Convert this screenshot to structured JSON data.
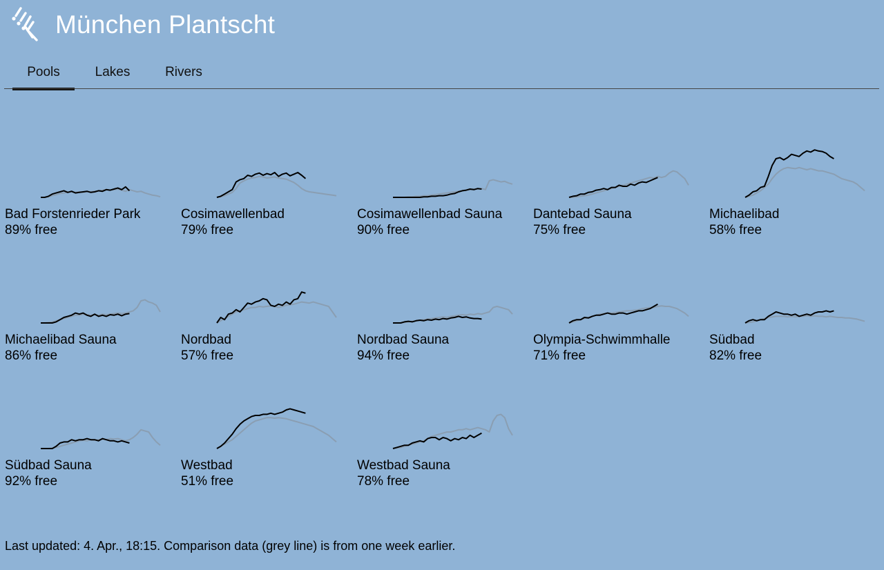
{
  "app": {
    "title": "München Plantscht",
    "logo_icon": "swimmer-logo-icon"
  },
  "tabs": [
    {
      "label": "Pools",
      "active": true
    },
    {
      "label": "Lakes",
      "active": false
    },
    {
      "label": "Rivers",
      "active": false
    }
  ],
  "colors": {
    "background": "#8fb3d6",
    "current_line": "#000000",
    "comparison_line": "#8a9eb2",
    "title": "#ffffff"
  },
  "chart_data": {
    "type": "line",
    "description_series": [
      "current",
      "previous week"
    ],
    "ylim": [
      0,
      100
    ],
    "charts": [
      {
        "name": "Bad Forstenrieder Park",
        "free": "89% free",
        "current": [
          0,
          0,
          2,
          6,
          8,
          10,
          12,
          9,
          11,
          8,
          9,
          10,
          11,
          9,
          10,
          12,
          11,
          14,
          13,
          15,
          17,
          14,
          19,
          12
        ],
        "previous": [
          0,
          0,
          1,
          3,
          5,
          7,
          8,
          9,
          10,
          9,
          10,
          9,
          11,
          10,
          11,
          12,
          13,
          14,
          13,
          14,
          15,
          13,
          11,
          14,
          12,
          10,
          11,
          8,
          6,
          4,
          3,
          1
        ]
      },
      {
        "name": "Cosimawellenbad",
        "free": "79% free",
        "current": [
          0,
          2,
          6,
          10,
          14,
          28,
          32,
          34,
          40,
          38,
          42,
          44,
          40,
          43,
          41,
          45,
          38,
          42,
          44,
          39,
          42,
          45,
          40,
          34
        ],
        "previous": [
          0,
          1,
          3,
          6,
          9,
          16,
          26,
          30,
          33,
          35,
          36,
          38,
          37,
          35,
          36,
          37,
          35,
          34,
          33,
          30,
          27,
          22,
          16,
          12,
          10,
          9,
          8,
          7,
          6,
          5,
          4,
          3
        ]
      },
      {
        "name": "Cosimawellenbad Sauna",
        "free": "90% free",
        "current": [
          0,
          0,
          0,
          0,
          0,
          0,
          0,
          0,
          1,
          1,
          2,
          2,
          3,
          3,
          4,
          6,
          7,
          10,
          12,
          13,
          15,
          14,
          16,
          15
        ],
        "previous": [
          0,
          0,
          0,
          0,
          1,
          1,
          2,
          2,
          3,
          3,
          4,
          5,
          6,
          7,
          8,
          9,
          10,
          11,
          12,
          13,
          14,
          15,
          15,
          16,
          14,
          30,
          32,
          30,
          28,
          29,
          26,
          24
        ]
      },
      {
        "name": "Dantebad Sauna",
        "free": "75% free",
        "current": [
          0,
          2,
          3,
          6,
          6,
          9,
          10,
          13,
          14,
          16,
          14,
          18,
          18,
          22,
          20,
          20,
          24,
          22,
          26,
          28,
          27,
          30,
          33,
          36
        ],
        "previous": [
          0,
          0,
          1,
          2,
          3,
          4,
          6,
          8,
          10,
          12,
          14,
          16,
          18,
          20,
          22,
          24,
          26,
          28,
          30,
          32,
          34,
          36,
          35,
          38,
          36,
          38,
          44,
          48,
          46,
          40,
          34,
          22
        ]
      },
      {
        "name": "Michaelibad",
        "free": "58% free",
        "current": [
          0,
          4,
          10,
          12,
          18,
          20,
          38,
          58,
          70,
          72,
          68,
          72,
          78,
          76,
          74,
          80,
          84,
          82,
          86,
          84,
          83,
          80,
          74,
          70
        ],
        "previous": [
          0,
          2,
          4,
          8,
          12,
          18,
          24,
          34,
          42,
          48,
          52,
          54,
          53,
          52,
          54,
          52,
          50,
          52,
          50,
          48,
          48,
          46,
          44,
          42,
          38,
          34,
          32,
          30,
          28,
          24,
          18,
          12
        ]
      },
      {
        "name": "Michaelibad Sauna",
        "free": "86% free",
        "current": [
          0,
          0,
          0,
          0,
          2,
          6,
          10,
          12,
          14,
          18,
          16,
          18,
          14,
          12,
          16,
          12,
          14,
          12,
          15,
          14,
          16,
          13,
          16,
          17
        ],
        "previous": [
          0,
          0,
          1,
          2,
          4,
          6,
          8,
          10,
          12,
          14,
          14,
          16,
          15,
          14,
          15,
          14,
          16,
          15,
          16,
          17,
          18,
          17,
          18,
          20,
          22,
          28,
          40,
          42,
          38,
          36,
          32,
          20
        ]
      },
      {
        "name": "Nordbad",
        "free": "57% free",
        "current": [
          0,
          10,
          6,
          16,
          18,
          24,
          20,
          28,
          36,
          34,
          38,
          40,
          44,
          42,
          32,
          30,
          34,
          32,
          38,
          34,
          42,
          44,
          56,
          54
        ],
        "previous": [
          0,
          4,
          8,
          12,
          16,
          20,
          22,
          24,
          26,
          28,
          28,
          30,
          29,
          30,
          31,
          30,
          28,
          30,
          32,
          33,
          34,
          36,
          38,
          37,
          36,
          38,
          36,
          34,
          32,
          30,
          20,
          10
        ]
      },
      {
        "name": "Nordbad Sauna",
        "free": "94% free",
        "current": [
          0,
          0,
          0,
          2,
          3,
          2,
          4,
          5,
          4,
          6,
          5,
          7,
          6,
          8,
          7,
          9,
          10,
          12,
          10,
          11,
          9,
          8,
          8,
          7
        ],
        "previous": [
          0,
          0,
          0,
          1,
          2,
          3,
          4,
          5,
          6,
          7,
          8,
          9,
          10,
          11,
          10,
          12,
          13,
          14,
          15,
          14,
          16,
          15,
          17,
          16,
          18,
          20,
          28,
          30,
          28,
          26,
          24,
          16
        ]
      },
      {
        "name": "Olympia-Schwimmhalle",
        "free": "71% free",
        "current": [
          0,
          4,
          6,
          6,
          10,
          9,
          12,
          14,
          14,
          16,
          18,
          16,
          16,
          18,
          18,
          16,
          18,
          20,
          22,
          22,
          24,
          26,
          30,
          34
        ],
        "previous": [
          0,
          2,
          4,
          6,
          8,
          10,
          12,
          14,
          16,
          17,
          18,
          18,
          19,
          20,
          21,
          22,
          22,
          23,
          24,
          26,
          27,
          28,
          28,
          30,
          31,
          30,
          30,
          28,
          26,
          22,
          18,
          12
        ]
      },
      {
        "name": "Südbad",
        "free": "82% free",
        "current": [
          0,
          4,
          6,
          4,
          6,
          6,
          12,
          16,
          20,
          18,
          16,
          16,
          14,
          16,
          12,
          14,
          16,
          14,
          18,
          20,
          20,
          22,
          20,
          22
        ],
        "previous": [
          0,
          1,
          2,
          4,
          6,
          8,
          10,
          11,
          12,
          12,
          12,
          11,
          12,
          11,
          12,
          12,
          13,
          12,
          13,
          12,
          12,
          11,
          12,
          11,
          10,
          10,
          9,
          9,
          8,
          7,
          5,
          3
        ]
      },
      {
        "name": "Südbad Sauna",
        "free": "92% free",
        "current": [
          0,
          0,
          0,
          0,
          4,
          10,
          12,
          12,
          16,
          14,
          16,
          16,
          18,
          16,
          16,
          14,
          18,
          16,
          14,
          14,
          12,
          14,
          12,
          10
        ],
        "previous": [
          0,
          0,
          0,
          1,
          2,
          4,
          6,
          8,
          10,
          12,
          14,
          15,
          14,
          16,
          15,
          16,
          17,
          16,
          18,
          17,
          18,
          16,
          14,
          16,
          20,
          26,
          34,
          32,
          30,
          20,
          12,
          6
        ]
      },
      {
        "name": "Westbad",
        "free": "51% free",
        "current": [
          0,
          4,
          10,
          18,
          26,
          36,
          44,
          50,
          54,
          58,
          60,
          60,
          62,
          62,
          64,
          62,
          64,
          66,
          70,
          72,
          70,
          68,
          66,
          64
        ],
        "previous": [
          0,
          4,
          8,
          12,
          16,
          22,
          28,
          34,
          40,
          46,
          50,
          52,
          54,
          56,
          56,
          55,
          56,
          55,
          54,
          52,
          50,
          48,
          46,
          44,
          42,
          40,
          36,
          32,
          28,
          24,
          18,
          12
        ]
      },
      {
        "name": "Westbad Sauna",
        "free": "78% free",
        "current": [
          0,
          2,
          4,
          6,
          6,
          10,
          12,
          14,
          12,
          18,
          20,
          20,
          16,
          20,
          18,
          14,
          18,
          16,
          20,
          18,
          24,
          20,
          24,
          28
        ],
        "previous": [
          0,
          1,
          2,
          4,
          6,
          8,
          10,
          12,
          14,
          18,
          22,
          24,
          26,
          28,
          30,
          30,
          32,
          34,
          34,
          36,
          34,
          36,
          38,
          36,
          34,
          30,
          50,
          60,
          62,
          56,
          36,
          24
        ]
      }
    ]
  },
  "footer": {
    "text": "Last updated: 4. Apr., 18:15. Comparison data (grey line) is from one week earlier."
  }
}
